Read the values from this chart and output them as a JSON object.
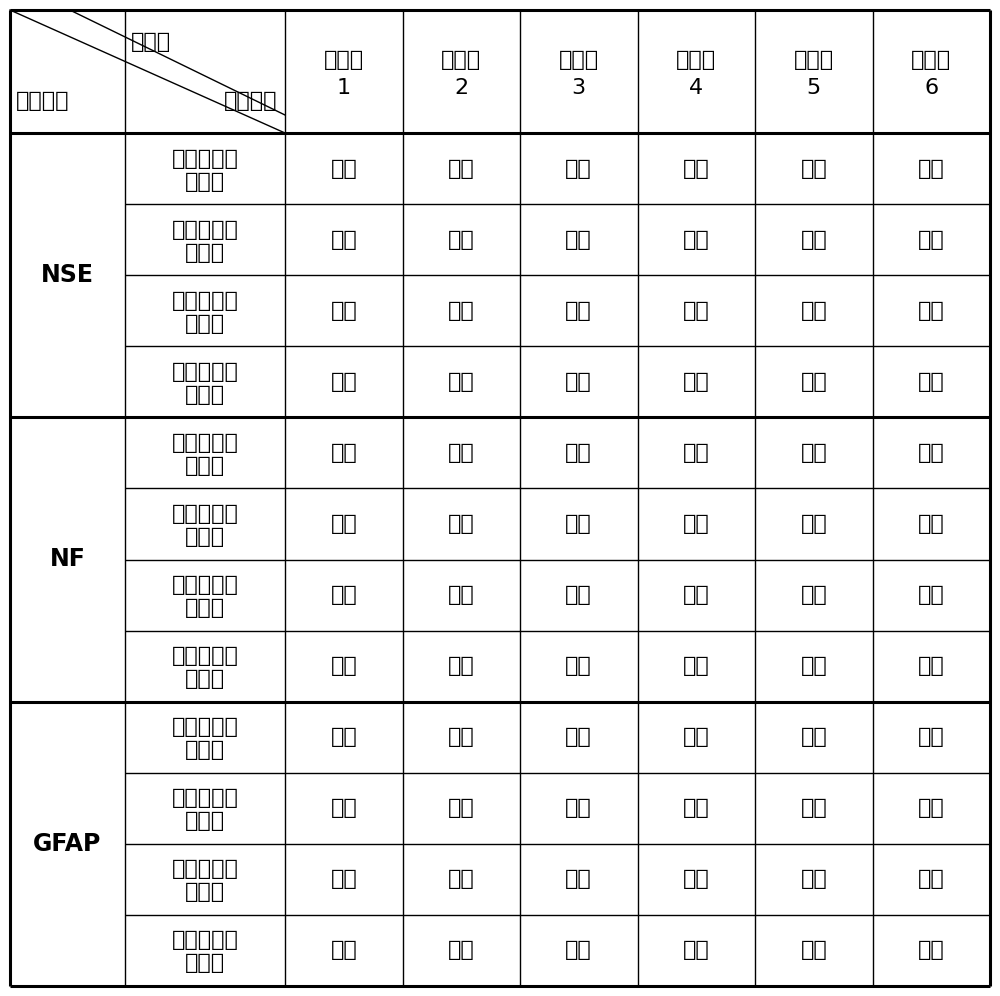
{
  "header_diagonal_top": "培养基",
  "header_diagonal_left": "检测项目",
  "header_diagonal_mid": "检测结果",
  "col_headers": [
    [
      "实施例",
      "1"
    ],
    [
      "实施例",
      "2"
    ],
    [
      "实施例",
      "3"
    ],
    [
      "实施例",
      "4"
    ],
    [
      "实施例",
      "5"
    ],
    [
      "实施例",
      "6"
    ]
  ],
  "row_groups": [
    {
      "group_label": "NSE",
      "rows": [
        {
          "cell_label": [
            "牙髓间充质",
            "干细胞"
          ],
          "values": [
            "阳性",
            "阳性",
            "阳性",
            "阳性",
            "阳性",
            "阴性"
          ]
        },
        {
          "cell_label": [
            "骨髓间充质",
            "干细胞"
          ],
          "values": [
            "阳性",
            "阳性",
            "阳性",
            "阳性",
            "阳性",
            "阴性"
          ]
        },
        {
          "cell_label": [
            "脐带间充质",
            "干细胞"
          ],
          "values": [
            "阳性",
            "阳性",
            "阳性",
            "阳性",
            "阳性",
            "阴性"
          ]
        },
        {
          "cell_label": [
            "脂肪间充质",
            "干细胞"
          ],
          "values": [
            "阳性",
            "阳性",
            "阳性",
            "阳性",
            "阳性",
            "阴性"
          ]
        }
      ]
    },
    {
      "group_label": "NF",
      "rows": [
        {
          "cell_label": [
            "牙髓间充质",
            "干细胞"
          ],
          "values": [
            "阳性",
            "阳性",
            "阳性",
            "阳性",
            "阳性",
            "阴性"
          ]
        },
        {
          "cell_label": [
            "骨髓间充质",
            "干细胞"
          ],
          "values": [
            "阳性",
            "阳性",
            "阳性",
            "阳性",
            "阳性",
            "阴性"
          ]
        },
        {
          "cell_label": [
            "脐带间充质",
            "干细胞"
          ],
          "values": [
            "阳性",
            "阳性",
            "阳性",
            "阳性",
            "阳性",
            "阴性"
          ]
        },
        {
          "cell_label": [
            "脂肪间充质",
            "干细胞"
          ],
          "values": [
            "阳性",
            "阳性",
            "阳性",
            "阳性",
            "阳性",
            "阴性"
          ]
        }
      ]
    },
    {
      "group_label": "GFAP",
      "rows": [
        {
          "cell_label": [
            "牙髓间充质",
            "干细胞"
          ],
          "values": [
            "阳性",
            "阳性",
            "阳性",
            "阳性",
            "阳性",
            "阴性"
          ]
        },
        {
          "cell_label": [
            "骨髓间充质",
            "干细胞"
          ],
          "values": [
            "阳性",
            "阳性",
            "阳性",
            "阳性",
            "阳性",
            "阴性"
          ]
        },
        {
          "cell_label": [
            "脐带间充质",
            "干细胞"
          ],
          "values": [
            "阳性",
            "阳性",
            "阳性",
            "阳性",
            "阳性",
            "阴性"
          ]
        },
        {
          "cell_label": [
            "脂肪间充质",
            "干细胞"
          ],
          "values": [
            "阳性",
            "阳性",
            "阳性",
            "阳性",
            "阳性",
            "阴性"
          ]
        }
      ]
    }
  ],
  "bg_color": "#ffffff",
  "line_color": "#000000",
  "text_color": "#000000",
  "font_size_data": 16,
  "font_size_header": 16,
  "font_size_group": 17,
  "lw_thick": 2.2,
  "lw_thin": 1.0
}
